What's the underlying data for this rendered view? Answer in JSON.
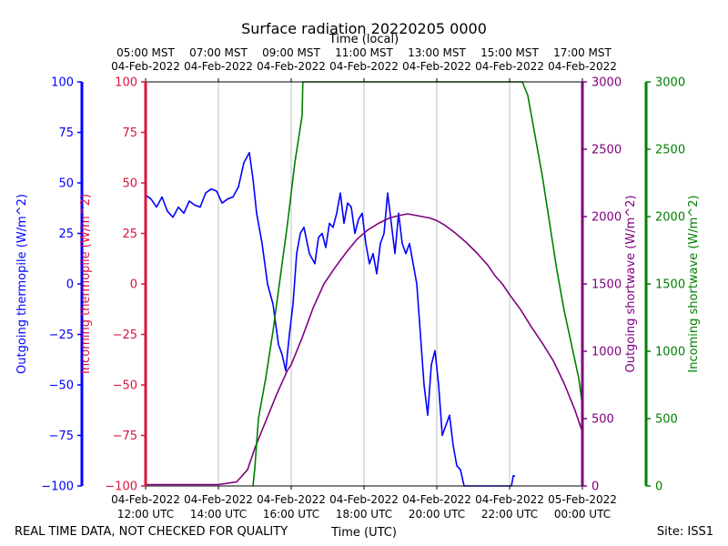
{
  "chart_data": {
    "type": "line",
    "title": "Surface radiation 20220205 0000",
    "xlabel_top": "Time (local)",
    "xlabel_bottom": "Time (UTC)",
    "footer_left": "REAL TIME DATA, NOT CHECKED FOR QUALITY",
    "footer_right": "Site: ISS1",
    "x_range_hours_utc": [
      12,
      24
    ],
    "x_ticks": [
      {
        "hour": 12,
        "utc_date": "04-Feb-2022",
        "utc_time": "12:00 UTC",
        "local_time": "05:00 MST",
        "local_date": "04-Feb-2022"
      },
      {
        "hour": 14,
        "utc_date": "04-Feb-2022",
        "utc_time": "14:00 UTC",
        "local_time": "07:00 MST",
        "local_date": "04-Feb-2022"
      },
      {
        "hour": 16,
        "utc_date": "04-Feb-2022",
        "utc_time": "16:00 UTC",
        "local_time": "09:00 MST",
        "local_date": "04-Feb-2022"
      },
      {
        "hour": 18,
        "utc_date": "04-Feb-2022",
        "utc_time": "18:00 UTC",
        "local_time": "11:00 MST",
        "local_date": "04-Feb-2022"
      },
      {
        "hour": 20,
        "utc_date": "04-Feb-2022",
        "utc_time": "20:00 UTC",
        "local_time": "13:00 MST",
        "local_date": "04-Feb-2022"
      },
      {
        "hour": 22,
        "utc_date": "04-Feb-2022",
        "utc_time": "22:00 UTC",
        "local_time": "15:00 MST",
        "local_date": "04-Feb-2022"
      },
      {
        "hour": 24,
        "utc_date": "05-Feb-2022",
        "utc_time": "00:00 UTC",
        "local_time": "17:00 MST",
        "local_date": "04-Feb-2022"
      }
    ],
    "grid": "vertical",
    "axes": [
      {
        "id": "outgoing_thermopile",
        "label": "Outgoing thermopile (W/m^2)",
        "color": "#0000ff",
        "range": [
          -100,
          100
        ],
        "ticks": [
          -100,
          -75,
          -50,
          -25,
          0,
          25,
          50,
          75,
          100
        ]
      },
      {
        "id": "incoming_thermopile",
        "label": "Incoming thermopile (W/m^2)",
        "color": "#dc143c",
        "range": [
          -100,
          100
        ],
        "ticks": [
          -100,
          -75,
          -50,
          -25,
          0,
          25,
          50,
          75,
          100
        ]
      },
      {
        "id": "outgoing_shortwave",
        "label": "Outgoing shortwave (W/m^2)",
        "color": "#800080",
        "range": [
          0,
          3000
        ],
        "ticks": [
          0,
          500,
          1000,
          1500,
          2000,
          2500,
          3000
        ]
      },
      {
        "id": "incoming_shortwave",
        "label": "Incoming shortwave (W/m^2)",
        "color": "#008000",
        "range": [
          0,
          3000
        ],
        "ticks": [
          0,
          500,
          1000,
          1500,
          2000,
          2500,
          3000
        ]
      }
    ],
    "series": [
      {
        "axis": "outgoing_thermopile",
        "color": "#0000ff",
        "x": [
          12.0,
          12.15,
          12.3,
          12.45,
          12.6,
          12.75,
          12.9,
          13.05,
          13.2,
          13.35,
          13.5,
          13.65,
          13.8,
          13.95,
          14.1,
          14.25,
          14.4,
          14.55,
          14.7,
          14.85,
          14.95,
          15.05,
          15.2,
          15.35,
          15.5,
          15.65,
          15.75,
          15.85,
          15.95,
          16.05,
          16.15,
          16.25,
          16.35,
          16.5,
          16.65,
          16.75,
          16.85,
          16.95,
          17.05,
          17.15,
          17.25,
          17.35,
          17.45,
          17.55,
          17.65,
          17.75,
          17.85,
          17.95,
          18.05,
          18.15,
          18.25,
          18.35,
          18.45,
          18.55,
          18.65,
          18.75,
          18.85,
          18.95,
          19.05,
          19.15,
          19.25,
          19.35,
          19.45,
          19.55,
          19.65,
          19.75,
          19.85,
          19.95,
          20.05,
          20.15,
          20.25,
          20.35,
          20.45,
          20.55,
          20.65,
          20.75,
          20.85,
          20.95,
          21.05,
          21.15,
          21.25,
          21.35,
          21.45,
          21.55,
          21.65,
          21.75,
          21.85,
          21.95,
          22.05,
          22.1,
          22.15
        ],
        "y": [
          44,
          42,
          38,
          43,
          36,
          33,
          38,
          35,
          41,
          39,
          38,
          45,
          47,
          46,
          40,
          42,
          43,
          48,
          60,
          65,
          52,
          35,
          20,
          0,
          -10,
          -30,
          -35,
          -43,
          -25,
          -10,
          15,
          25,
          28,
          15,
          10,
          23,
          25,
          18,
          30,
          28,
          35,
          45,
          30,
          40,
          38,
          25,
          32,
          35,
          20,
          10,
          15,
          5,
          20,
          25,
          45,
          30,
          15,
          35,
          20,
          15,
          20,
          10,
          0,
          -25,
          -50,
          -65,
          -40,
          -33,
          -50,
          -75,
          -70,
          -65,
          -80,
          -90,
          -92,
          -100,
          -100,
          -100,
          -100,
          -100,
          -100,
          -100,
          -100,
          -100,
          -100,
          -100,
          -100,
          -100,
          -100,
          -95,
          -95
        ]
      },
      {
        "axis": "outgoing_shortwave",
        "color": "#800080",
        "x": [
          12.0,
          12.5,
          13.0,
          13.5,
          14.0,
          14.5,
          14.8,
          15.0,
          15.3,
          15.6,
          15.9,
          16.0,
          16.3,
          16.6,
          16.9,
          17.2,
          17.5,
          17.8,
          18.1,
          18.4,
          18.7,
          19.0,
          19.2,
          19.4,
          19.6,
          19.8,
          20.0,
          20.2,
          20.5,
          20.8,
          21.1,
          21.4,
          21.6,
          21.8,
          22.0,
          22.3,
          22.6,
          22.9,
          23.2,
          23.5,
          23.8,
          24.0
        ],
        "y": [
          10,
          10,
          10,
          10,
          10,
          30,
          120,
          280,
          480,
          680,
          860,
          900,
          1100,
          1320,
          1500,
          1620,
          1730,
          1830,
          1900,
          1950,
          1990,
          2010,
          2020,
          2010,
          2000,
          1990,
          1970,
          1940,
          1880,
          1810,
          1730,
          1640,
          1560,
          1500,
          1420,
          1310,
          1180,
          1060,
          930,
          760,
          560,
          400
        ]
      },
      {
        "axis": "incoming_shortwave",
        "color": "#008000",
        "x": [
          14.95,
          15.0,
          15.1,
          15.3,
          15.5,
          15.7,
          15.9,
          16.1,
          16.3,
          16.32,
          22.35,
          22.5,
          22.7,
          22.9,
          23.1,
          23.3,
          23.5,
          23.7,
          23.9,
          24.0
        ],
        "y": [
          0,
          130,
          500,
          800,
          1150,
          1550,
          1950,
          2400,
          2750,
          3000,
          3000,
          2900,
          2600,
          2300,
          1950,
          1600,
          1300,
          1050,
          800,
          600
        ]
      }
    ]
  }
}
